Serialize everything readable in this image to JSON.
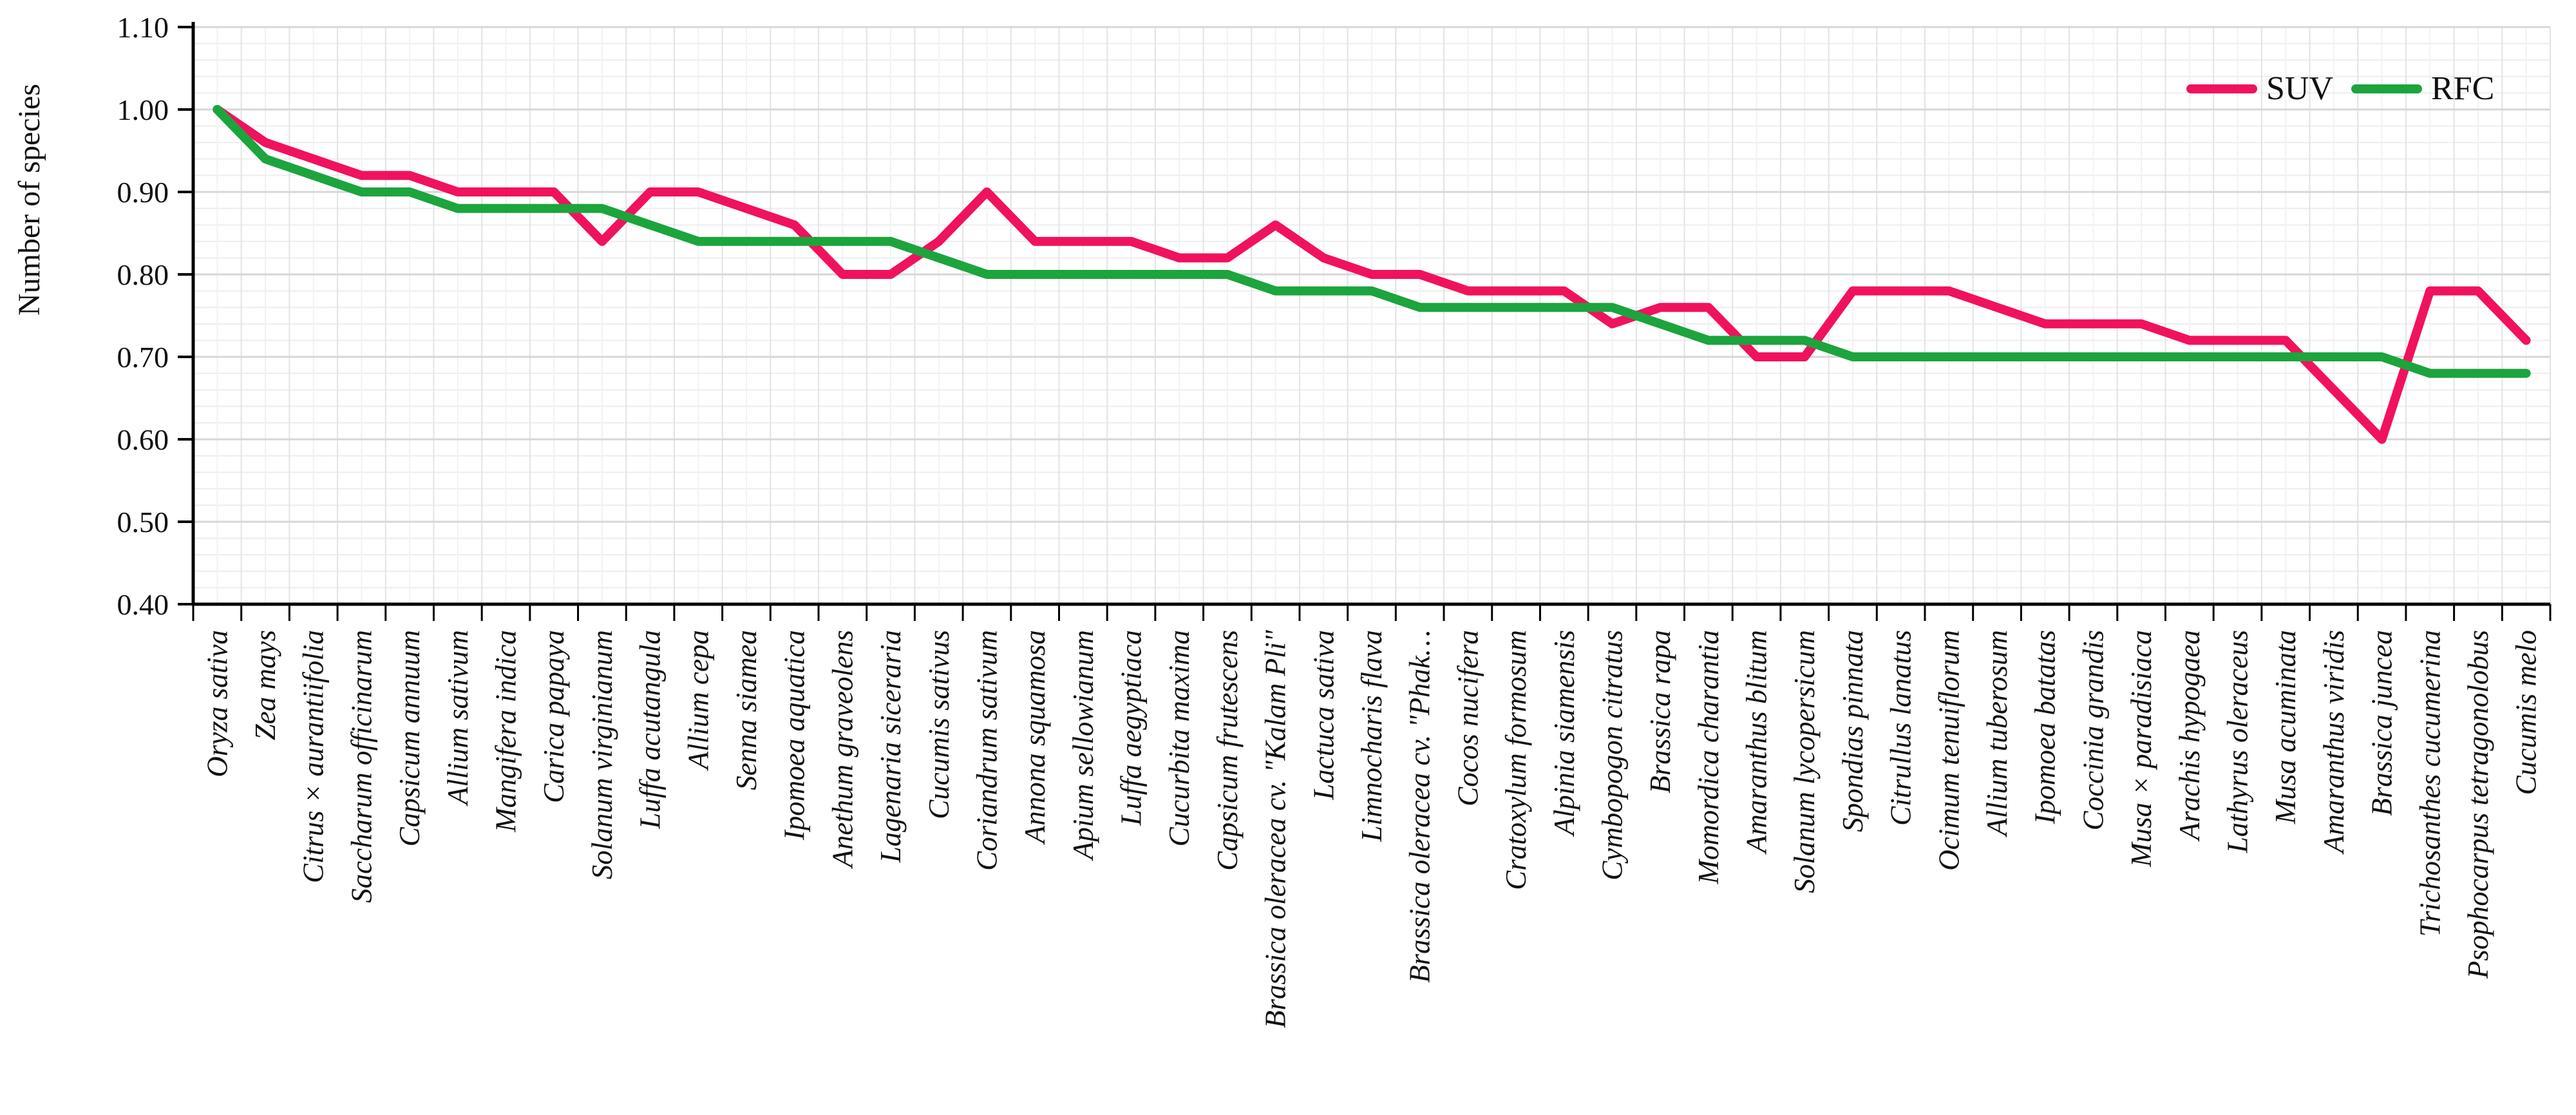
{
  "chart_data": {
    "type": "line",
    "title": "",
    "ylabel": "Number of species",
    "xlabel": "",
    "ylim": [
      0.4,
      1.1
    ],
    "ytick_step": 0.1,
    "ytick_labels": [
      "1.10",
      "1.00",
      "0.90",
      "0.80",
      "0.70",
      "0.60",
      "0.50",
      "0.40"
    ],
    "minor_y_step": 0.02,
    "grid": {
      "major_color": "#d7d7d7",
      "minor_color": "#ededed",
      "vertical_major_color": "#e3e3e3",
      "vertical_minor_color": "#f2f2f2"
    },
    "axis_color": "#000000",
    "legend": {
      "position": "top-right",
      "entries": [
        {
          "name": "SUV",
          "color": "#F0125C"
        },
        {
          "name": "RFC",
          "color": "#1CA43D"
        }
      ]
    },
    "categories": [
      "Oryza sativa",
      "Zea mays",
      "Citrus × aurantiifolia",
      "Saccharum officinarum",
      "Capsicum annuum",
      "Allium sativum",
      "Mangifera indica",
      "Carica papaya",
      "Solanum virginianum",
      "Luffa acutangula",
      "Allium cepa",
      "Senna siamea",
      "Ipomoea aquatica",
      "Anethum graveolens",
      "Lagenaria siceraria",
      "Cucumis sativus",
      "Coriandrum sativum",
      "Annona squamosa",
      "Apium sellowianum",
      "Luffa aegyptiaca",
      "Cucurbita maxima",
      "Capsicum frutescens",
      "Brassica oleracea cv. \"Kalam Pli\"",
      "Lactuca sativa",
      "Limnocharis flava",
      "Brassica oleracea cv. \"Phak…",
      "Cocos nucifera",
      "Cratoxylum formosum",
      "Alpinia siamensis",
      "Cymbopogon citratus",
      "Brassica rapa",
      "Momordica charantia",
      "Amaranthus blitum",
      "Solanum lycopersicum",
      "Spondias pinnata",
      "Citrullus lanatus",
      "Ocimum tenuiflorum",
      "Allium tuberosum",
      "Ipomoea batatas",
      "Coccinia grandis",
      "Musa × paradisiaca",
      "Arachis hypogaea",
      "Lathyrus oleraceus",
      "Musa acuminata",
      "Amaranthus viridis",
      "Brassica juncea",
      "Trichosanthes cucumerina",
      "Psophocarpus tetragonolobus",
      "Cucumis melo"
    ],
    "series": [
      {
        "name": "SUV",
        "color": "#F0125C",
        "values": [
          1.0,
          0.96,
          0.94,
          0.92,
          0.92,
          0.9,
          0.9,
          0.9,
          0.84,
          0.9,
          0.9,
          0.88,
          0.86,
          0.8,
          0.8,
          0.84,
          0.9,
          0.84,
          0.84,
          0.84,
          0.82,
          0.82,
          0.86,
          0.82,
          0.8,
          0.8,
          0.78,
          0.78,
          0.78,
          0.74,
          0.76,
          0.76,
          0.7,
          0.7,
          0.78,
          0.78,
          0.78,
          0.76,
          0.74,
          0.74,
          0.74,
          0.72,
          0.72,
          0.72,
          0.66,
          0.6,
          0.78,
          0.78,
          0.72
        ]
      },
      {
        "name": "RFC",
        "color": "#1CA43D",
        "values": [
          1.0,
          0.94,
          0.92,
          0.9,
          0.9,
          0.88,
          0.88,
          0.88,
          0.88,
          0.86,
          0.84,
          0.84,
          0.84,
          0.84,
          0.84,
          0.82,
          0.8,
          0.8,
          0.8,
          0.8,
          0.8,
          0.8,
          0.78,
          0.78,
          0.78,
          0.76,
          0.76,
          0.76,
          0.76,
          0.76,
          0.74,
          0.72,
          0.72,
          0.72,
          0.7,
          0.7,
          0.7,
          0.7,
          0.7,
          0.7,
          0.7,
          0.7,
          0.7,
          0.7,
          0.7,
          0.7,
          0.68,
          0.68,
          0.68
        ]
      }
    ]
  }
}
